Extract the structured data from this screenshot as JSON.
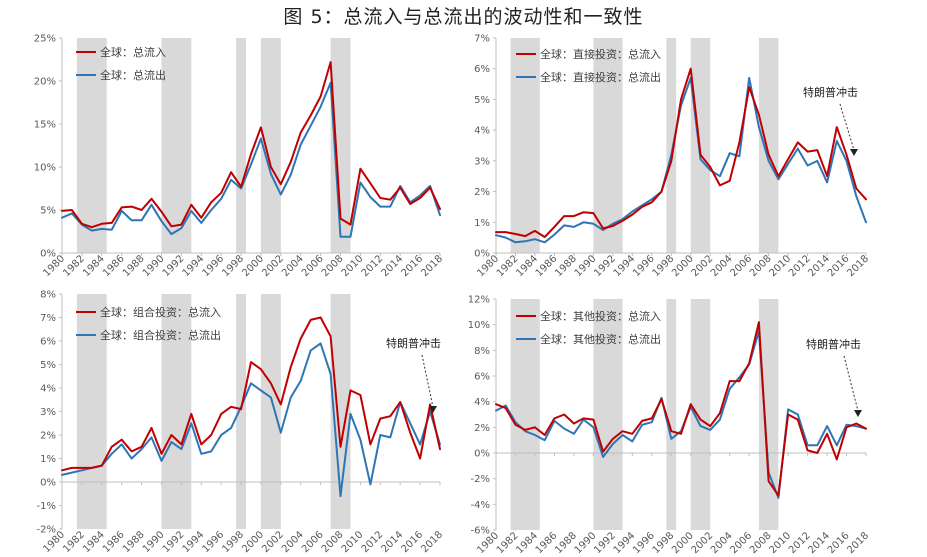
{
  "figure_title": "图 5：总流入与总流出的波动性和一致性",
  "colors": {
    "inflow": "#C00000",
    "outflow": "#2E75B6",
    "shade": "#D9D9D9",
    "axis": "#BFBFBF",
    "text": "#595959"
  },
  "chart_data": [
    {
      "type": "line",
      "x": [
        1980,
        1981,
        1982,
        1983,
        1984,
        1985,
        1986,
        1987,
        1988,
        1989,
        1990,
        1991,
        1992,
        1993,
        1994,
        1995,
        1996,
        1997,
        1998,
        1999,
        2000,
        2001,
        2002,
        2003,
        2004,
        2005,
        2006,
        2007,
        2008,
        2009,
        2010,
        2011,
        2012,
        2013,
        2014,
        2015,
        2016,
        2017,
        2018
      ],
      "tick_labels": [
        "1980",
        "1982",
        "1984",
        "1986",
        "1988",
        "1990",
        "1992",
        "1994",
        "1996",
        "1998",
        "2000",
        "2002",
        "2004",
        "2006",
        "2008",
        "2010",
        "2012",
        "2014",
        "2016",
        "2018"
      ],
      "y_ticks": [
        "0%",
        "5%",
        "10%",
        "15%",
        "20%",
        "25%"
      ],
      "ylim": [
        0,
        25
      ],
      "shaded_ranges": [
        [
          1981.5,
          1984.5
        ],
        [
          1990,
          1993
        ],
        [
          1997.5,
          1998.5
        ],
        [
          2000,
          2002
        ],
        [
          2007,
          2009
        ]
      ],
      "series": [
        {
          "name": "全球：总流入",
          "values": [
            4.9,
            5.0,
            3.4,
            3.0,
            3.4,
            3.5,
            5.3,
            5.4,
            5.0,
            6.3,
            4.8,
            3.1,
            3.3,
            5.6,
            4.1,
            5.9,
            7.0,
            9.4,
            7.7,
            11.5,
            14.6,
            10.0,
            8.0,
            10.6,
            14.0,
            16.0,
            18.2,
            22.2,
            4.0,
            3.3,
            9.8,
            8.1,
            6.4,
            6.2,
            7.6,
            5.7,
            6.4,
            7.6,
            5.1
          ]
        },
        {
          "name": "全球：总流出",
          "values": [
            4.1,
            4.6,
            3.3,
            2.6,
            2.8,
            2.7,
            4.9,
            3.8,
            3.8,
            5.6,
            3.7,
            2.2,
            2.9,
            4.9,
            3.5,
            5.0,
            6.3,
            8.5,
            7.5,
            10.3,
            13.3,
            9.2,
            6.8,
            9.1,
            12.6,
            14.8,
            17.0,
            19.8,
            1.9,
            1.9,
            8.2,
            6.5,
            5.4,
            5.4,
            7.8,
            5.9,
            6.7,
            7.8,
            4.4
          ]
        }
      ],
      "annotation": ""
    },
    {
      "type": "line",
      "x": [
        1980,
        1981,
        1982,
        1983,
        1984,
        1985,
        1986,
        1987,
        1988,
        1989,
        1990,
        1991,
        1992,
        1993,
        1994,
        1995,
        1996,
        1997,
        1998,
        1999,
        2000,
        2001,
        2002,
        2003,
        2004,
        2005,
        2006,
        2007,
        2008,
        2009,
        2010,
        2011,
        2012,
        2013,
        2014,
        2015,
        2016,
        2017,
        2018
      ],
      "tick_labels": [
        "1980",
        "1982",
        "1984",
        "1986",
        "1988",
        "1990",
        "1992",
        "1994",
        "1996",
        "1998",
        "2000",
        "2002",
        "2004",
        "2006",
        "2008",
        "2010",
        "2012",
        "2014",
        "2016",
        "2018"
      ],
      "y_ticks": [
        "0%",
        "1%",
        "2%",
        "3%",
        "4%",
        "5%",
        "6%",
        "7%"
      ],
      "ylim": [
        0,
        7
      ],
      "shaded_ranges": [
        [
          1981.5,
          1984.5
        ],
        [
          1990,
          1993
        ],
        [
          1997.5,
          1998.5
        ],
        [
          2000,
          2002
        ],
        [
          2007,
          2009
        ]
      ],
      "series": [
        {
          "name": "全球：直接投资：总流入",
          "values": [
            0.68,
            0.68,
            0.62,
            0.55,
            0.72,
            0.52,
            0.85,
            1.2,
            1.2,
            1.33,
            1.3,
            0.8,
            0.88,
            1.05,
            1.25,
            1.5,
            1.65,
            2.0,
            3.0,
            5.0,
            6.0,
            3.2,
            2.8,
            2.2,
            2.35,
            3.6,
            5.4,
            4.5,
            3.2,
            2.5,
            3.05,
            3.6,
            3.3,
            3.35,
            2.5,
            4.1,
            3.2,
            2.1,
            1.75
          ]
        },
        {
          "name": "全球：直接投资：总流出",
          "values": [
            0.58,
            0.5,
            0.35,
            0.38,
            0.45,
            0.35,
            0.6,
            0.9,
            0.85,
            1.0,
            0.95,
            0.75,
            0.95,
            1.1,
            1.35,
            1.55,
            1.75,
            2.0,
            3.2,
            4.8,
            5.7,
            3.05,
            2.7,
            2.5,
            3.25,
            3.15,
            5.7,
            4.1,
            3.0,
            2.4,
            2.9,
            3.4,
            2.85,
            3.0,
            2.3,
            3.65,
            3.0,
            1.85,
            1.0
          ]
        }
      ],
      "annotation": "特朗普冲击"
    },
    {
      "type": "line",
      "x": [
        1980,
        1981,
        1982,
        1983,
        1984,
        1985,
        1986,
        1987,
        1988,
        1989,
        1990,
        1991,
        1992,
        1993,
        1994,
        1995,
        1996,
        1997,
        1998,
        1999,
        2000,
        2001,
        2002,
        2003,
        2004,
        2005,
        2006,
        2007,
        2008,
        2009,
        2010,
        2011,
        2012,
        2013,
        2014,
        2015,
        2016,
        2017,
        2018
      ],
      "tick_labels": [
        "1980",
        "1982",
        "1984",
        "1986",
        "1988",
        "1990",
        "1992",
        "1994",
        "1996",
        "1998",
        "2000",
        "2002",
        "2004",
        "2006",
        "2008",
        "2010",
        "2012",
        "2014",
        "2016",
        "2018"
      ],
      "y_ticks": [
        "-2%",
        "-1%",
        "0%",
        "1%",
        "2%",
        "3%",
        "4%",
        "5%",
        "6%",
        "7%",
        "8%"
      ],
      "ylim": [
        -2,
        8
      ],
      "shaded_ranges": [
        [
          1981.5,
          1984.5
        ],
        [
          1990,
          1993
        ],
        [
          1997.5,
          1998.5
        ],
        [
          2000,
          2002
        ],
        [
          2007,
          2009
        ]
      ],
      "series": [
        {
          "name": "全球：组合投资：总流入",
          "values": [
            0.5,
            0.6,
            0.6,
            0.6,
            0.7,
            1.5,
            1.8,
            1.3,
            1.5,
            2.3,
            1.2,
            2.0,
            1.6,
            2.9,
            1.6,
            2.0,
            2.9,
            3.2,
            3.1,
            5.1,
            4.8,
            4.2,
            3.3,
            4.9,
            6.1,
            6.9,
            7.0,
            6.2,
            1.5,
            3.9,
            3.7,
            1.6,
            2.7,
            2.8,
            3.4,
            2.1,
            1.0,
            3.3,
            1.4
          ]
        },
        {
          "name": "全球：组合投资：总流出",
          "values": [
            0.3,
            0.4,
            0.5,
            0.6,
            0.7,
            1.2,
            1.6,
            1.0,
            1.4,
            1.9,
            0.9,
            1.7,
            1.4,
            2.5,
            1.2,
            1.3,
            2.0,
            2.3,
            3.2,
            4.2,
            3.9,
            3.6,
            2.1,
            3.6,
            4.3,
            5.6,
            5.9,
            4.6,
            -0.6,
            2.9,
            1.8,
            -0.1,
            2.0,
            1.9,
            3.4,
            2.5,
            1.6,
            3.0,
            1.6
          ]
        }
      ],
      "annotation": "特朗普冲击"
    },
    {
      "type": "line",
      "x": [
        1980,
        1981,
        1982,
        1983,
        1984,
        1985,
        1986,
        1987,
        1988,
        1989,
        1990,
        1991,
        1992,
        1993,
        1994,
        1995,
        1996,
        1997,
        1998,
        1999,
        2000,
        2001,
        2002,
        2003,
        2004,
        2005,
        2006,
        2007,
        2008,
        2009,
        2010,
        2011,
        2012,
        2013,
        2014,
        2015,
        2016,
        2017,
        2018
      ],
      "tick_labels": [
        "1980",
        "1982",
        "1984",
        "1986",
        "1988",
        "1990",
        "1992",
        "1994",
        "1996",
        "1998",
        "2000",
        "2002",
        "2004",
        "2006",
        "2008",
        "2010",
        "2012",
        "2014",
        "2016",
        "2018"
      ],
      "y_ticks": [
        "-6%",
        "-4%",
        "-2%",
        "0%",
        "2%",
        "4%",
        "6%",
        "8%",
        "10%",
        "12%"
      ],
      "ylim": [
        -6,
        12
      ],
      "shaded_ranges": [
        [
          1981.5,
          1984.5
        ],
        [
          1990,
          1993
        ],
        [
          1997.5,
          1998.5
        ],
        [
          2000,
          2002
        ],
        [
          2007,
          2009
        ]
      ],
      "series": [
        {
          "name": "全球：其他投资：总流入",
          "values": [
            3.8,
            3.5,
            2.2,
            1.8,
            2.0,
            1.4,
            2.7,
            3.0,
            2.3,
            2.7,
            2.6,
            0.1,
            1.1,
            1.7,
            1.5,
            2.5,
            2.7,
            4.2,
            1.7,
            1.5,
            3.8,
            2.6,
            2.1,
            3.1,
            5.6,
            5.6,
            7.0,
            10.2,
            -2.2,
            -3.3,
            3.0,
            2.6,
            0.2,
            0.0,
            1.5,
            -0.5,
            2.0,
            2.3,
            1.9
          ]
        },
        {
          "name": "全球：其他投资：总流出",
          "values": [
            3.3,
            3.7,
            2.4,
            1.7,
            1.4,
            1.0,
            2.5,
            1.9,
            1.5,
            2.6,
            2.0,
            -0.3,
            0.7,
            1.4,
            0.9,
            2.2,
            2.4,
            4.3,
            1.1,
            1.7,
            3.6,
            2.1,
            1.8,
            2.6,
            5.0,
            5.9,
            6.9,
            9.5,
            -1.5,
            -3.5,
            3.4,
            3.0,
            0.6,
            0.6,
            2.1,
            0.6,
            2.2,
            2.1,
            1.9
          ]
        }
      ],
      "annotation": "特朗普冲击"
    }
  ]
}
